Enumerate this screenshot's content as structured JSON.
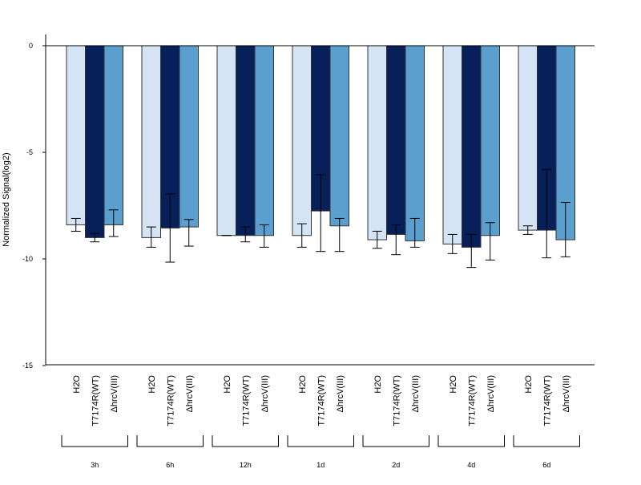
{
  "chart_data": {
    "type": "bar",
    "title": "",
    "xlabel": "",
    "ylabel": "Normalized Signal(log2)",
    "ylim": [
      -15,
      0.5
    ],
    "yticks": [
      0,
      -5,
      -10,
      -15
    ],
    "grid": false,
    "legend": "none",
    "groups": [
      "3h",
      "6h",
      "12h",
      "1d",
      "2d",
      "4d",
      "6d"
    ],
    "bar_labels": [
      "H2O",
      "T7174R(WT)",
      "ΔhrcV(III)"
    ],
    "series": [
      {
        "color": "#d4e4f4",
        "values": [
          -8.4,
          -9.0,
          -8.9,
          -8.9,
          -9.1,
          -9.3,
          -8.65
        ],
        "err_low": [
          -8.7,
          -9.45,
          -8.9,
          -9.45,
          -9.5,
          -9.75,
          -8.85
        ],
        "err_high": [
          -8.1,
          -8.5,
          -8.9,
          -8.35,
          -8.7,
          -8.85,
          -8.45
        ]
      },
      {
        "color": "#08205a",
        "values": [
          -9.0,
          -8.55,
          -8.9,
          -7.75,
          -8.85,
          -9.45,
          -8.65
        ],
        "err_low": [
          -9.2,
          -10.15,
          -9.2,
          -9.65,
          -9.8,
          -10.4,
          -9.95
        ],
        "err_high": [
          -8.8,
          -6.95,
          -8.5,
          -6.05,
          -8.4,
          -8.85,
          -5.8
        ]
      },
      {
        "color": "#5b9fce",
        "values": [
          -8.4,
          -8.5,
          -8.9,
          -8.45,
          -9.15,
          -8.9,
          -9.1
        ],
        "err_low": [
          -8.95,
          -9.4,
          -9.45,
          -9.65,
          -9.45,
          -10.05,
          -9.9
        ],
        "err_high": [
          -7.7,
          -8.15,
          -8.4,
          -8.1,
          -8.1,
          -8.3,
          -7.35
        ]
      }
    ]
  }
}
